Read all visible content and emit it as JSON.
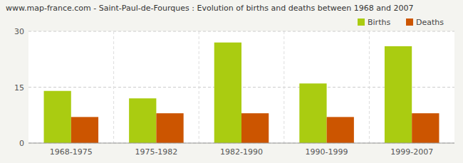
{
  "chart_data": {
    "type": "bar",
    "title": "www.map-france.com - Saint-Paul-de-Fourques : Evolution of births and deaths between 1968 and 2007",
    "categories": [
      "1968-1975",
      "1975-1982",
      "1982-1990",
      "1990-1999",
      "1999-2007"
    ],
    "series": [
      {
        "name": "Births",
        "color": "#aacc11",
        "values": [
          14,
          12,
          27,
          16,
          26
        ]
      },
      {
        "name": "Deaths",
        "color": "#cc5500",
        "values": [
          7,
          8,
          8,
          7,
          8
        ]
      }
    ],
    "ylim": [
      0,
      30
    ],
    "yticks": [
      0,
      15,
      30
    ],
    "grid": true,
    "legend": "upper right"
  }
}
